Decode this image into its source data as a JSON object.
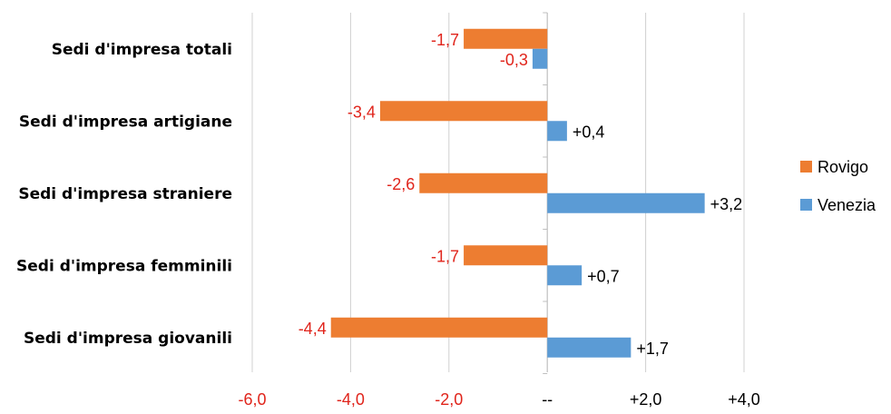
{
  "chart_data": {
    "type": "bar",
    "orientation": "horizontal",
    "categories": [
      "Sedi d'impresa totali",
      "Sedi d'impresa artigiane",
      "Sedi d'impresa straniere",
      "Sedi d'impresa femminili",
      "Sedi d'impresa giovanili"
    ],
    "series": [
      {
        "name": "Rovigo",
        "color": "#ED7D31",
        "values": [
          -1.7,
          -3.4,
          -2.6,
          -1.7,
          -4.4
        ],
        "labels": [
          "-1,7",
          "-3,4",
          "-2,6",
          "-1,7",
          "-4,4"
        ]
      },
      {
        "name": "Venezia",
        "color": "#5B9BD5",
        "values": [
          -0.3,
          0.4,
          3.2,
          0.7,
          1.7
        ],
        "labels": [
          "-0,3",
          "+0,4",
          "+3,2",
          "+0,7",
          "+1,7"
        ]
      }
    ],
    "x_ticks": [
      {
        "value": -6,
        "label": "-6,0"
      },
      {
        "value": -4,
        "label": "-4,0"
      },
      {
        "value": -2,
        "label": "-2,0"
      },
      {
        "value": 0,
        "label": "--"
      },
      {
        "value": 2,
        "label": "+2,0"
      },
      {
        "value": 4,
        "label": "+4,0"
      }
    ],
    "xlim": [
      -6,
      4
    ],
    "negative_label_color": "#E0241B",
    "positive_label_color": "#000000",
    "grid": true,
    "legend": "right",
    "title": "",
    "xlabel": "",
    "ylabel": ""
  }
}
